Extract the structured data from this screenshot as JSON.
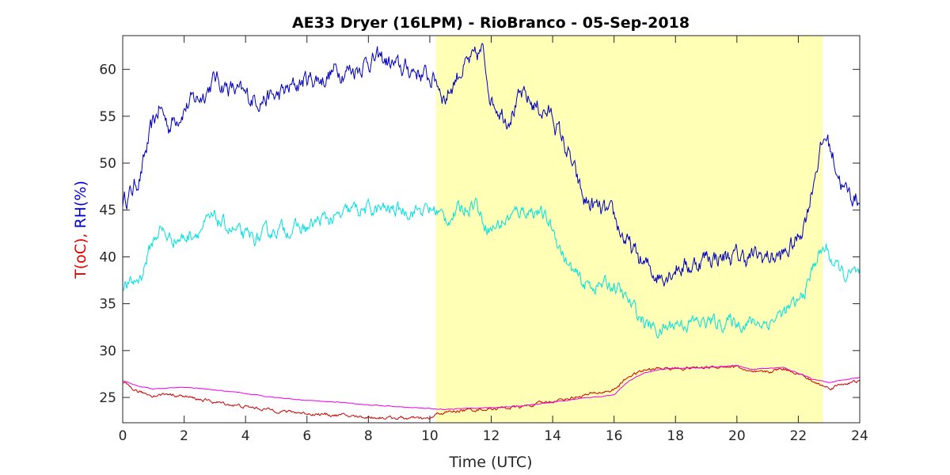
{
  "chart_data": {
    "type": "line",
    "title": "AE33 Dryer (16LPM)  - RioBranco - 05-Sep-2018",
    "xlabel": "Time (UTC)",
    "ylabel_parts": [
      {
        "text": "T(oC),",
        "color": "#e00000"
      },
      {
        "text": "RH(%)",
        "color": "#0000dd"
      }
    ],
    "xlim": [
      0,
      24
    ],
    "ylim": [
      22.3,
      63.6
    ],
    "xticks": [
      "0",
      "2",
      "4",
      "6",
      "8",
      "10",
      "12",
      "14",
      "16",
      "18",
      "20",
      "22",
      "24"
    ],
    "yticks": [
      "25",
      "30",
      "35",
      "40",
      "45",
      "50",
      "55",
      "60"
    ],
    "highlight": {
      "x0": 10.2,
      "x1": 22.8,
      "color": "#ffffb5"
    },
    "series": [
      {
        "color": "#0000bb",
        "noise": 1.6,
        "x": [
          0,
          0.3,
          0.6,
          0.9,
          1.2,
          1.5,
          2,
          2.5,
          3,
          3.5,
          4,
          4.5,
          5,
          5.5,
          6,
          6.5,
          7,
          7.5,
          8,
          8.5,
          9,
          9.5,
          10,
          10.2,
          10.5,
          11,
          11.5,
          11.7,
          12,
          12.5,
          13,
          13.5,
          14,
          14.5,
          15,
          15.5,
          16,
          16.5,
          17,
          17.5,
          18,
          18.5,
          19,
          19.5,
          20,
          20.5,
          21,
          21.5,
          22,
          22.3,
          22.6,
          22.9,
          23.2,
          23.5,
          24
        ],
        "y": [
          46,
          47,
          49,
          53,
          56,
          54,
          56,
          57,
          59,
          58,
          57,
          57,
          57,
          58,
          59,
          59,
          60,
          60,
          61,
          61,
          60,
          60,
          59,
          59,
          57,
          60,
          61,
          62,
          57,
          55,
          57,
          56,
          55,
          51,
          46,
          45,
          44,
          41,
          39,
          38,
          39,
          39,
          40,
          40,
          40,
          40,
          40,
          40,
          42,
          45,
          50,
          53,
          50,
          47,
          46
        ]
      },
      {
        "color": "#00e0e0",
        "noise": 1.2,
        "x": [
          0,
          0.3,
          0.6,
          0.9,
          1.2,
          1.5,
          2,
          2.5,
          3,
          3.5,
          4,
          4.5,
          5,
          5.5,
          6,
          6.5,
          7,
          7.5,
          8,
          8.5,
          9,
          9.5,
          10,
          10.2,
          10.5,
          11,
          11.5,
          11.7,
          12,
          12.5,
          13,
          13.5,
          14,
          14.5,
          15,
          15.5,
          16,
          16.5,
          17,
          17.5,
          18,
          18.5,
          19,
          19.5,
          20,
          20.5,
          21,
          21.5,
          22,
          22.3,
          22.6,
          22.9,
          23.2,
          23.5,
          24
        ],
        "y": [
          37,
          37,
          38,
          41,
          43,
          42,
          42,
          43,
          44,
          43,
          42,
          42,
          43,
          43,
          43,
          44,
          44,
          45,
          45,
          45,
          45,
          45,
          45,
          45,
          44,
          45,
          46,
          44,
          43,
          44,
          45,
          45,
          43,
          39,
          37,
          37,
          37,
          35,
          33,
          32,
          33,
          33,
          33,
          33,
          33,
          33,
          33,
          34,
          35,
          37,
          40,
          41,
          39,
          38,
          38
        ]
      },
      {
        "color": "#cc0000",
        "noise": 0.25,
        "x": [
          0,
          0.5,
          1,
          1.5,
          2,
          3,
          4,
          5,
          6,
          7,
          8,
          9,
          10,
          10.3,
          11,
          12,
          13,
          14,
          15,
          16,
          16.5,
          17,
          17.5,
          18,
          19,
          19.5,
          20,
          20.5,
          21,
          21.5,
          22,
          22.5,
          23,
          23.5,
          24
        ],
        "y": [
          26.5,
          25.6,
          25.2,
          25.4,
          25.1,
          24.5,
          24.0,
          23.6,
          23.3,
          23.1,
          22.9,
          22.8,
          22.7,
          23.3,
          23.6,
          23.8,
          24.0,
          24.6,
          25.2,
          25.8,
          27.3,
          27.9,
          28.1,
          28.1,
          28.2,
          28.3,
          28.3,
          27.6,
          27.7,
          28.1,
          27.6,
          26.6,
          26.0,
          26.5,
          26.7
        ]
      },
      {
        "color": "#ee00ee",
        "noise": 0.06,
        "x": [
          0,
          0.5,
          1,
          1.5,
          2,
          3,
          4,
          5,
          6,
          7,
          8,
          9,
          10,
          10.3,
          11,
          12,
          13,
          14,
          15,
          16,
          16.5,
          17,
          17.5,
          18,
          19,
          19.5,
          20,
          20.5,
          21,
          21.5,
          22,
          22.5,
          23,
          23.5,
          24
        ],
        "y": [
          26.8,
          26.2,
          25.9,
          26.0,
          26.1,
          25.8,
          25.4,
          25.0,
          24.7,
          24.5,
          24.2,
          24.0,
          23.8,
          23.7,
          23.8,
          23.9,
          24.1,
          24.5,
          24.9,
          25.3,
          26.8,
          27.6,
          28.0,
          28.1,
          28.2,
          28.3,
          28.4,
          28.0,
          28.1,
          28.2,
          27.6,
          26.9,
          26.6,
          26.9,
          27.1
        ]
      }
    ]
  }
}
